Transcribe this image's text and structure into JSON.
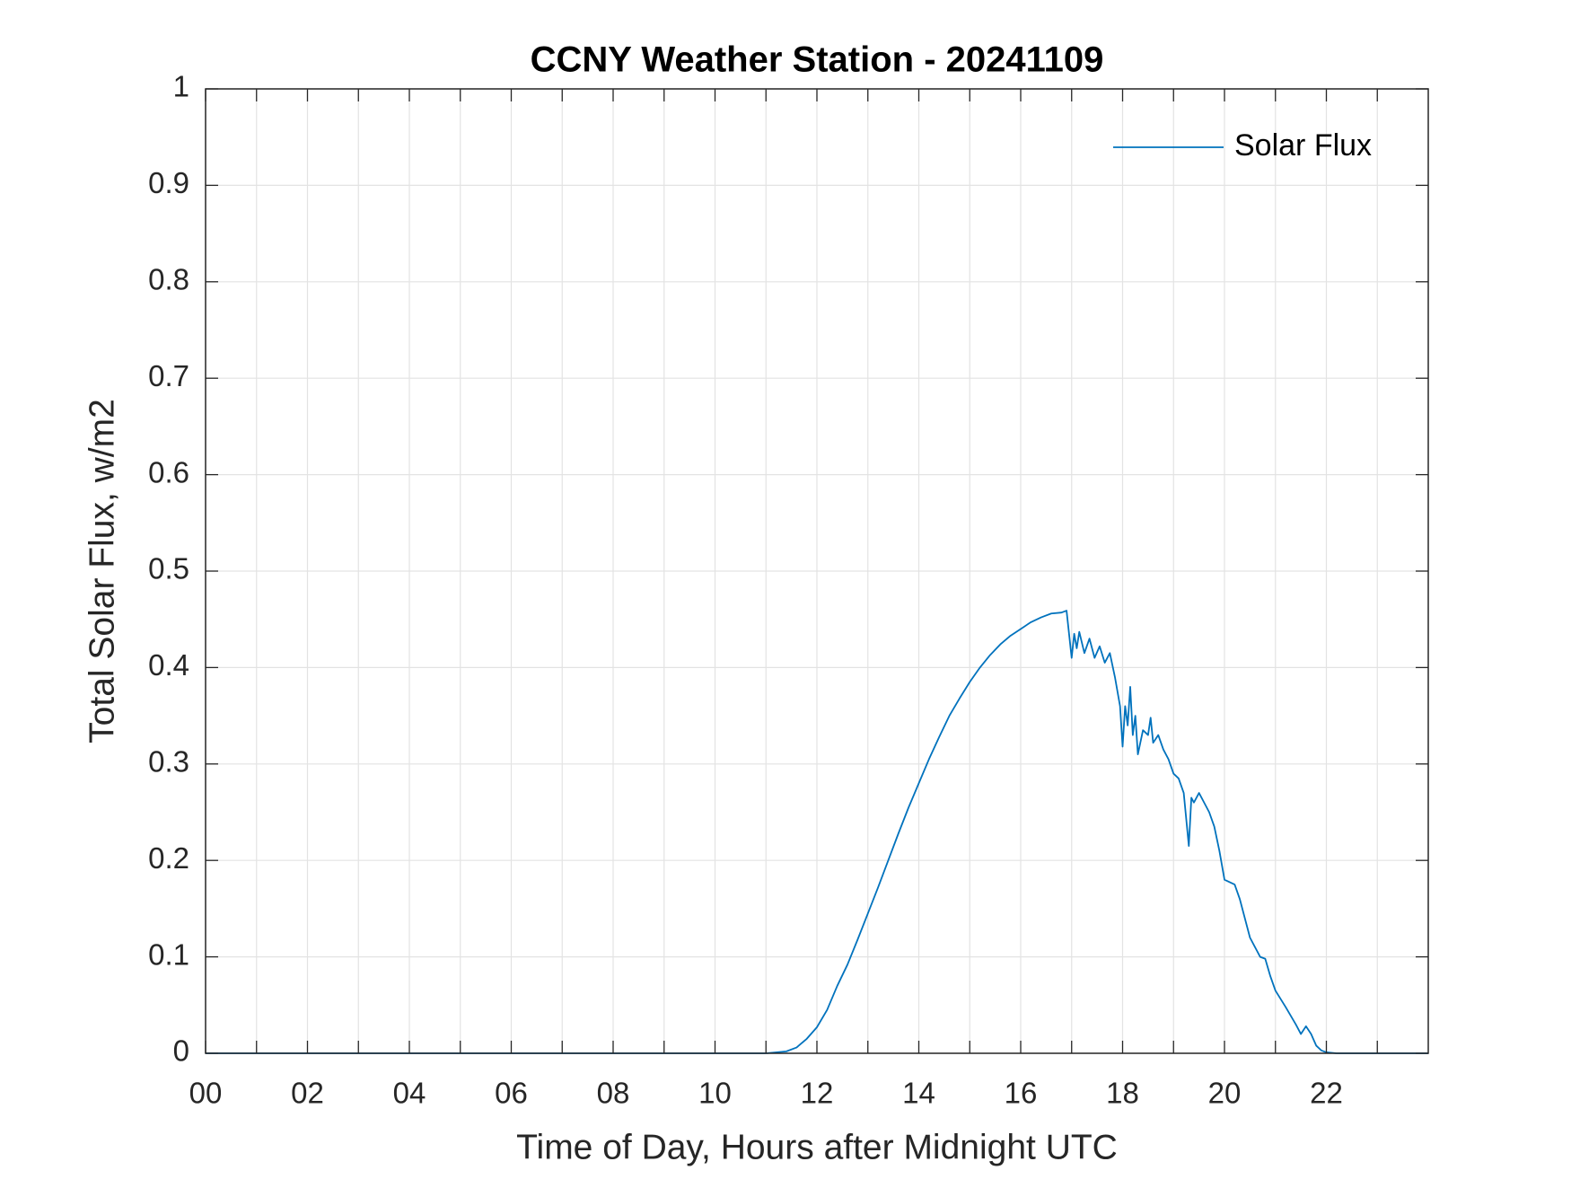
{
  "chart_data": {
    "type": "line",
    "title": "CCNY Weather Station - 20241109",
    "xlabel": "Time of Day, Hours after Midnight UTC",
    "ylabel": "Total Solar Flux, w/m2",
    "x": [
      0,
      11.0,
      11.4,
      11.6,
      11.8,
      12.0,
      12.2,
      12.4,
      12.6,
      12.8,
      13.0,
      13.2,
      13.4,
      13.6,
      13.8,
      14.0,
      14.2,
      14.4,
      14.6,
      14.8,
      15.0,
      15.2,
      15.4,
      15.6,
      15.8,
      16.0,
      16.2,
      16.4,
      16.6,
      16.8,
      16.9,
      17.0,
      17.05,
      17.1,
      17.15,
      17.25,
      17.35,
      17.45,
      17.55,
      17.65,
      17.75,
      17.85,
      17.95,
      18.0,
      18.05,
      18.1,
      18.15,
      18.2,
      18.25,
      18.3,
      18.4,
      18.5,
      18.55,
      18.6,
      18.7,
      18.8,
      18.9,
      19.0,
      19.1,
      19.2,
      19.3,
      19.35,
      19.4,
      19.5,
      19.6,
      19.7,
      19.8,
      19.9,
      20.0,
      20.2,
      20.3,
      20.4,
      20.5,
      20.7,
      20.8,
      20.9,
      21.0,
      21.2,
      21.4,
      21.5,
      21.6,
      21.7,
      21.8,
      21.9,
      22.0,
      22.2,
      24
    ],
    "series": [
      {
        "name": "Solar Flux",
        "color": "#0072bd",
        "values": [
          0,
          0,
          0.002,
          0.006,
          0.015,
          0.027,
          0.045,
          0.07,
          0.092,
          0.118,
          0.145,
          0.172,
          0.2,
          0.228,
          0.255,
          0.28,
          0.305,
          0.328,
          0.35,
          0.368,
          0.385,
          0.4,
          0.413,
          0.424,
          0.433,
          0.44,
          0.447,
          0.452,
          0.456,
          0.457,
          0.459,
          0.41,
          0.435,
          0.42,
          0.437,
          0.415,
          0.43,
          0.41,
          0.422,
          0.405,
          0.415,
          0.39,
          0.36,
          0.318,
          0.36,
          0.34,
          0.38,
          0.33,
          0.35,
          0.31,
          0.335,
          0.33,
          0.348,
          0.322,
          0.33,
          0.315,
          0.305,
          0.29,
          0.285,
          0.27,
          0.215,
          0.265,
          0.26,
          0.27,
          0.26,
          0.25,
          0.235,
          0.21,
          0.18,
          0.175,
          0.16,
          0.14,
          0.12,
          0.1,
          0.098,
          0.08,
          0.065,
          0.048,
          0.03,
          0.02,
          0.028,
          0.02,
          0.008,
          0.003,
          0.001,
          0,
          0
        ]
      }
    ],
    "xlim": [
      0,
      24
    ],
    "xticks": [
      {
        "value": 0,
        "label": "00"
      },
      {
        "value": 2,
        "label": "02"
      },
      {
        "value": 4,
        "label": "04"
      },
      {
        "value": 6,
        "label": "06"
      },
      {
        "value": 8,
        "label": "08"
      },
      10,
      12,
      14,
      16,
      18,
      20,
      22
    ],
    "xminorticks": [
      1,
      3,
      5,
      7,
      9,
      11,
      13,
      15,
      17,
      19,
      21,
      23
    ],
    "ylim": [
      0,
      1
    ],
    "yticks": [
      0,
      0.1,
      0.2,
      0.3,
      0.4,
      0.5,
      0.6,
      0.7,
      0.8,
      0.9,
      1
    ],
    "grid": true,
    "legend": "upper right"
  }
}
